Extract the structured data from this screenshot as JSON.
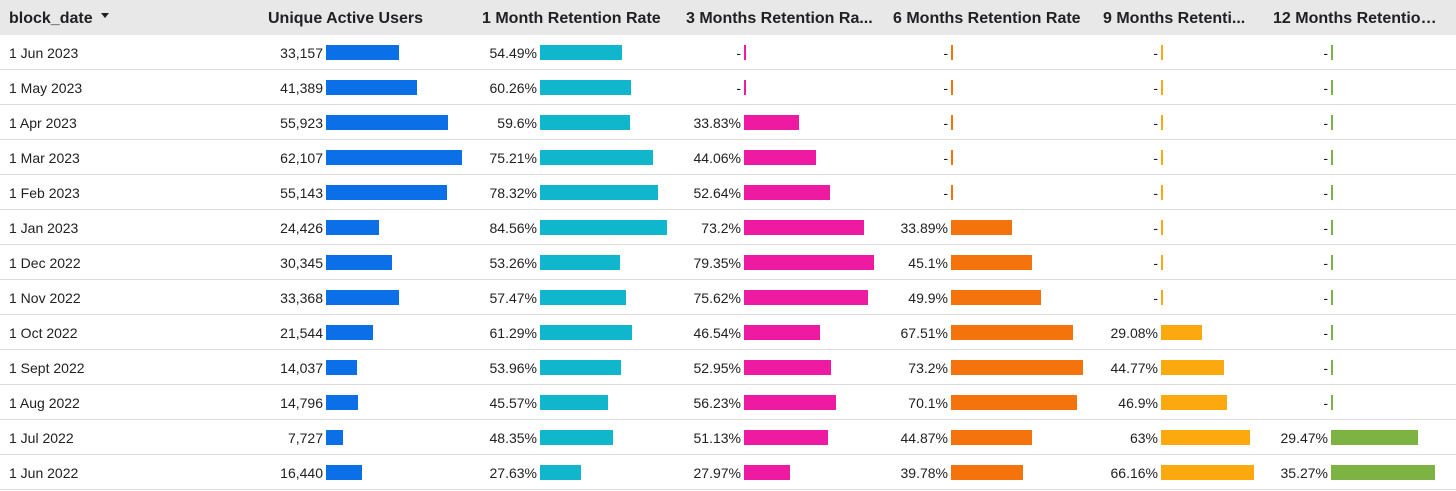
{
  "header": {
    "columns": [
      {
        "key": "date",
        "label": "block_date",
        "sorted": true
      },
      {
        "key": "users",
        "label": "Unique Active Users"
      },
      {
        "key": "m1",
        "label": "1 Month Retention Rate"
      },
      {
        "key": "m3",
        "label": "3 Months Retention Ra..."
      },
      {
        "key": "m6",
        "label": "6 Months Retention Rate"
      },
      {
        "key": "m9",
        "label": "9 Months Retenti..."
      },
      {
        "key": "m12",
        "label": "12 Months Retention..."
      }
    ]
  },
  "colors": {
    "users": "#0b6fe8",
    "m1": "#10b7cc",
    "m3": "#ee1ba2",
    "m6": "#f5730c",
    "m9": "#fca80f",
    "m12": "#7cb342"
  },
  "chart_data": {
    "type": "table",
    "columns": [
      "block_date",
      "Unique Active Users",
      "1 Month Retention Rate",
      "3 Months Retention Ra...",
      "6 Months Retention Rate",
      "9 Months Retenti...",
      "12 Months Retention..."
    ],
    "rows": [
      {
        "date": "1 Jun 2023",
        "users": 33157,
        "users_label": "33,157",
        "m1": 54.49,
        "m1_label": "54.49%",
        "m3": null,
        "m3_label": "-",
        "m6": null,
        "m6_label": "-",
        "m9": null,
        "m9_label": "-",
        "m12": null,
        "m12_label": "-"
      },
      {
        "date": "1 May 2023",
        "users": 41389,
        "users_label": "41,389",
        "m1": 60.26,
        "m1_label": "60.26%",
        "m3": null,
        "m3_label": "-",
        "m6": null,
        "m6_label": "-",
        "m9": null,
        "m9_label": "-",
        "m12": null,
        "m12_label": "-"
      },
      {
        "date": "1 Apr 2023",
        "users": 55923,
        "users_label": "55,923",
        "m1": 59.6,
        "m1_label": "59.6%",
        "m3": 33.83,
        "m3_label": "33.83%",
        "m6": null,
        "m6_label": "-",
        "m9": null,
        "m9_label": "-",
        "m12": null,
        "m12_label": "-"
      },
      {
        "date": "1 Mar 2023",
        "users": 62107,
        "users_label": "62,107",
        "m1": 75.21,
        "m1_label": "75.21%",
        "m3": 44.06,
        "m3_label": "44.06%",
        "m6": null,
        "m6_label": "-",
        "m9": null,
        "m9_label": "-",
        "m12": null,
        "m12_label": "-"
      },
      {
        "date": "1 Feb 2023",
        "users": 55143,
        "users_label": "55,143",
        "m1": 78.32,
        "m1_label": "78.32%",
        "m3": 52.64,
        "m3_label": "52.64%",
        "m6": null,
        "m6_label": "-",
        "m9": null,
        "m9_label": "-",
        "m12": null,
        "m12_label": "-"
      },
      {
        "date": "1 Jan 2023",
        "users": 24426,
        "users_label": "24,426",
        "m1": 84.56,
        "m1_label": "84.56%",
        "m3": 73.2,
        "m3_label": "73.2%",
        "m6": 33.89,
        "m6_label": "33.89%",
        "m9": null,
        "m9_label": "-",
        "m12": null,
        "m12_label": "-"
      },
      {
        "date": "1 Dec 2022",
        "users": 30345,
        "users_label": "30,345",
        "m1": 53.26,
        "m1_label": "53.26%",
        "m3": 79.35,
        "m3_label": "79.35%",
        "m6": 45.1,
        "m6_label": "45.1%",
        "m9": null,
        "m9_label": "-",
        "m12": null,
        "m12_label": "-"
      },
      {
        "date": "1 Nov 2022",
        "users": 33368,
        "users_label": "33,368",
        "m1": 57.47,
        "m1_label": "57.47%",
        "m3": 75.62,
        "m3_label": "75.62%",
        "m6": 49.9,
        "m6_label": "49.9%",
        "m9": null,
        "m9_label": "-",
        "m12": null,
        "m12_label": "-"
      },
      {
        "date": "1 Oct 2022",
        "users": 21544,
        "users_label": "21,544",
        "m1": 61.29,
        "m1_label": "61.29%",
        "m3": 46.54,
        "m3_label": "46.54%",
        "m6": 67.51,
        "m6_label": "67.51%",
        "m9": 29.08,
        "m9_label": "29.08%",
        "m12": null,
        "m12_label": "-"
      },
      {
        "date": "1 Sept 2022",
        "users": 14037,
        "users_label": "14,037",
        "m1": 53.96,
        "m1_label": "53.96%",
        "m3": 52.95,
        "m3_label": "52.95%",
        "m6": 73.2,
        "m6_label": "73.2%",
        "m9": 44.77,
        "m9_label": "44.77%",
        "m12": null,
        "m12_label": "-"
      },
      {
        "date": "1 Aug 2022",
        "users": 14796,
        "users_label": "14,796",
        "m1": 45.57,
        "m1_label": "45.57%",
        "m3": 56.23,
        "m3_label": "56.23%",
        "m6": 70.1,
        "m6_label": "70.1%",
        "m9": 46.9,
        "m9_label": "46.9%",
        "m12": null,
        "m12_label": "-"
      },
      {
        "date": "1 Jul 2022",
        "users": 7727,
        "users_label": "7,727",
        "m1": 48.35,
        "m1_label": "48.35%",
        "m3": 51.13,
        "m3_label": "51.13%",
        "m6": 44.87,
        "m6_label": "44.87%",
        "m9": 63,
        "m9_label": "63%",
        "m12": 29.47,
        "m12_label": "29.47%"
      },
      {
        "date": "1 Jun 2022",
        "users": 16440,
        "users_label": "16,440",
        "m1": 27.63,
        "m1_label": "27.63%",
        "m3": 27.97,
        "m3_label": "27.97%",
        "m6": 39.78,
        "m6_label": "39.78%",
        "m9": 66.16,
        "m9_label": "66.16%",
        "m12": 35.27,
        "m12_label": "35.27%"
      }
    ]
  }
}
